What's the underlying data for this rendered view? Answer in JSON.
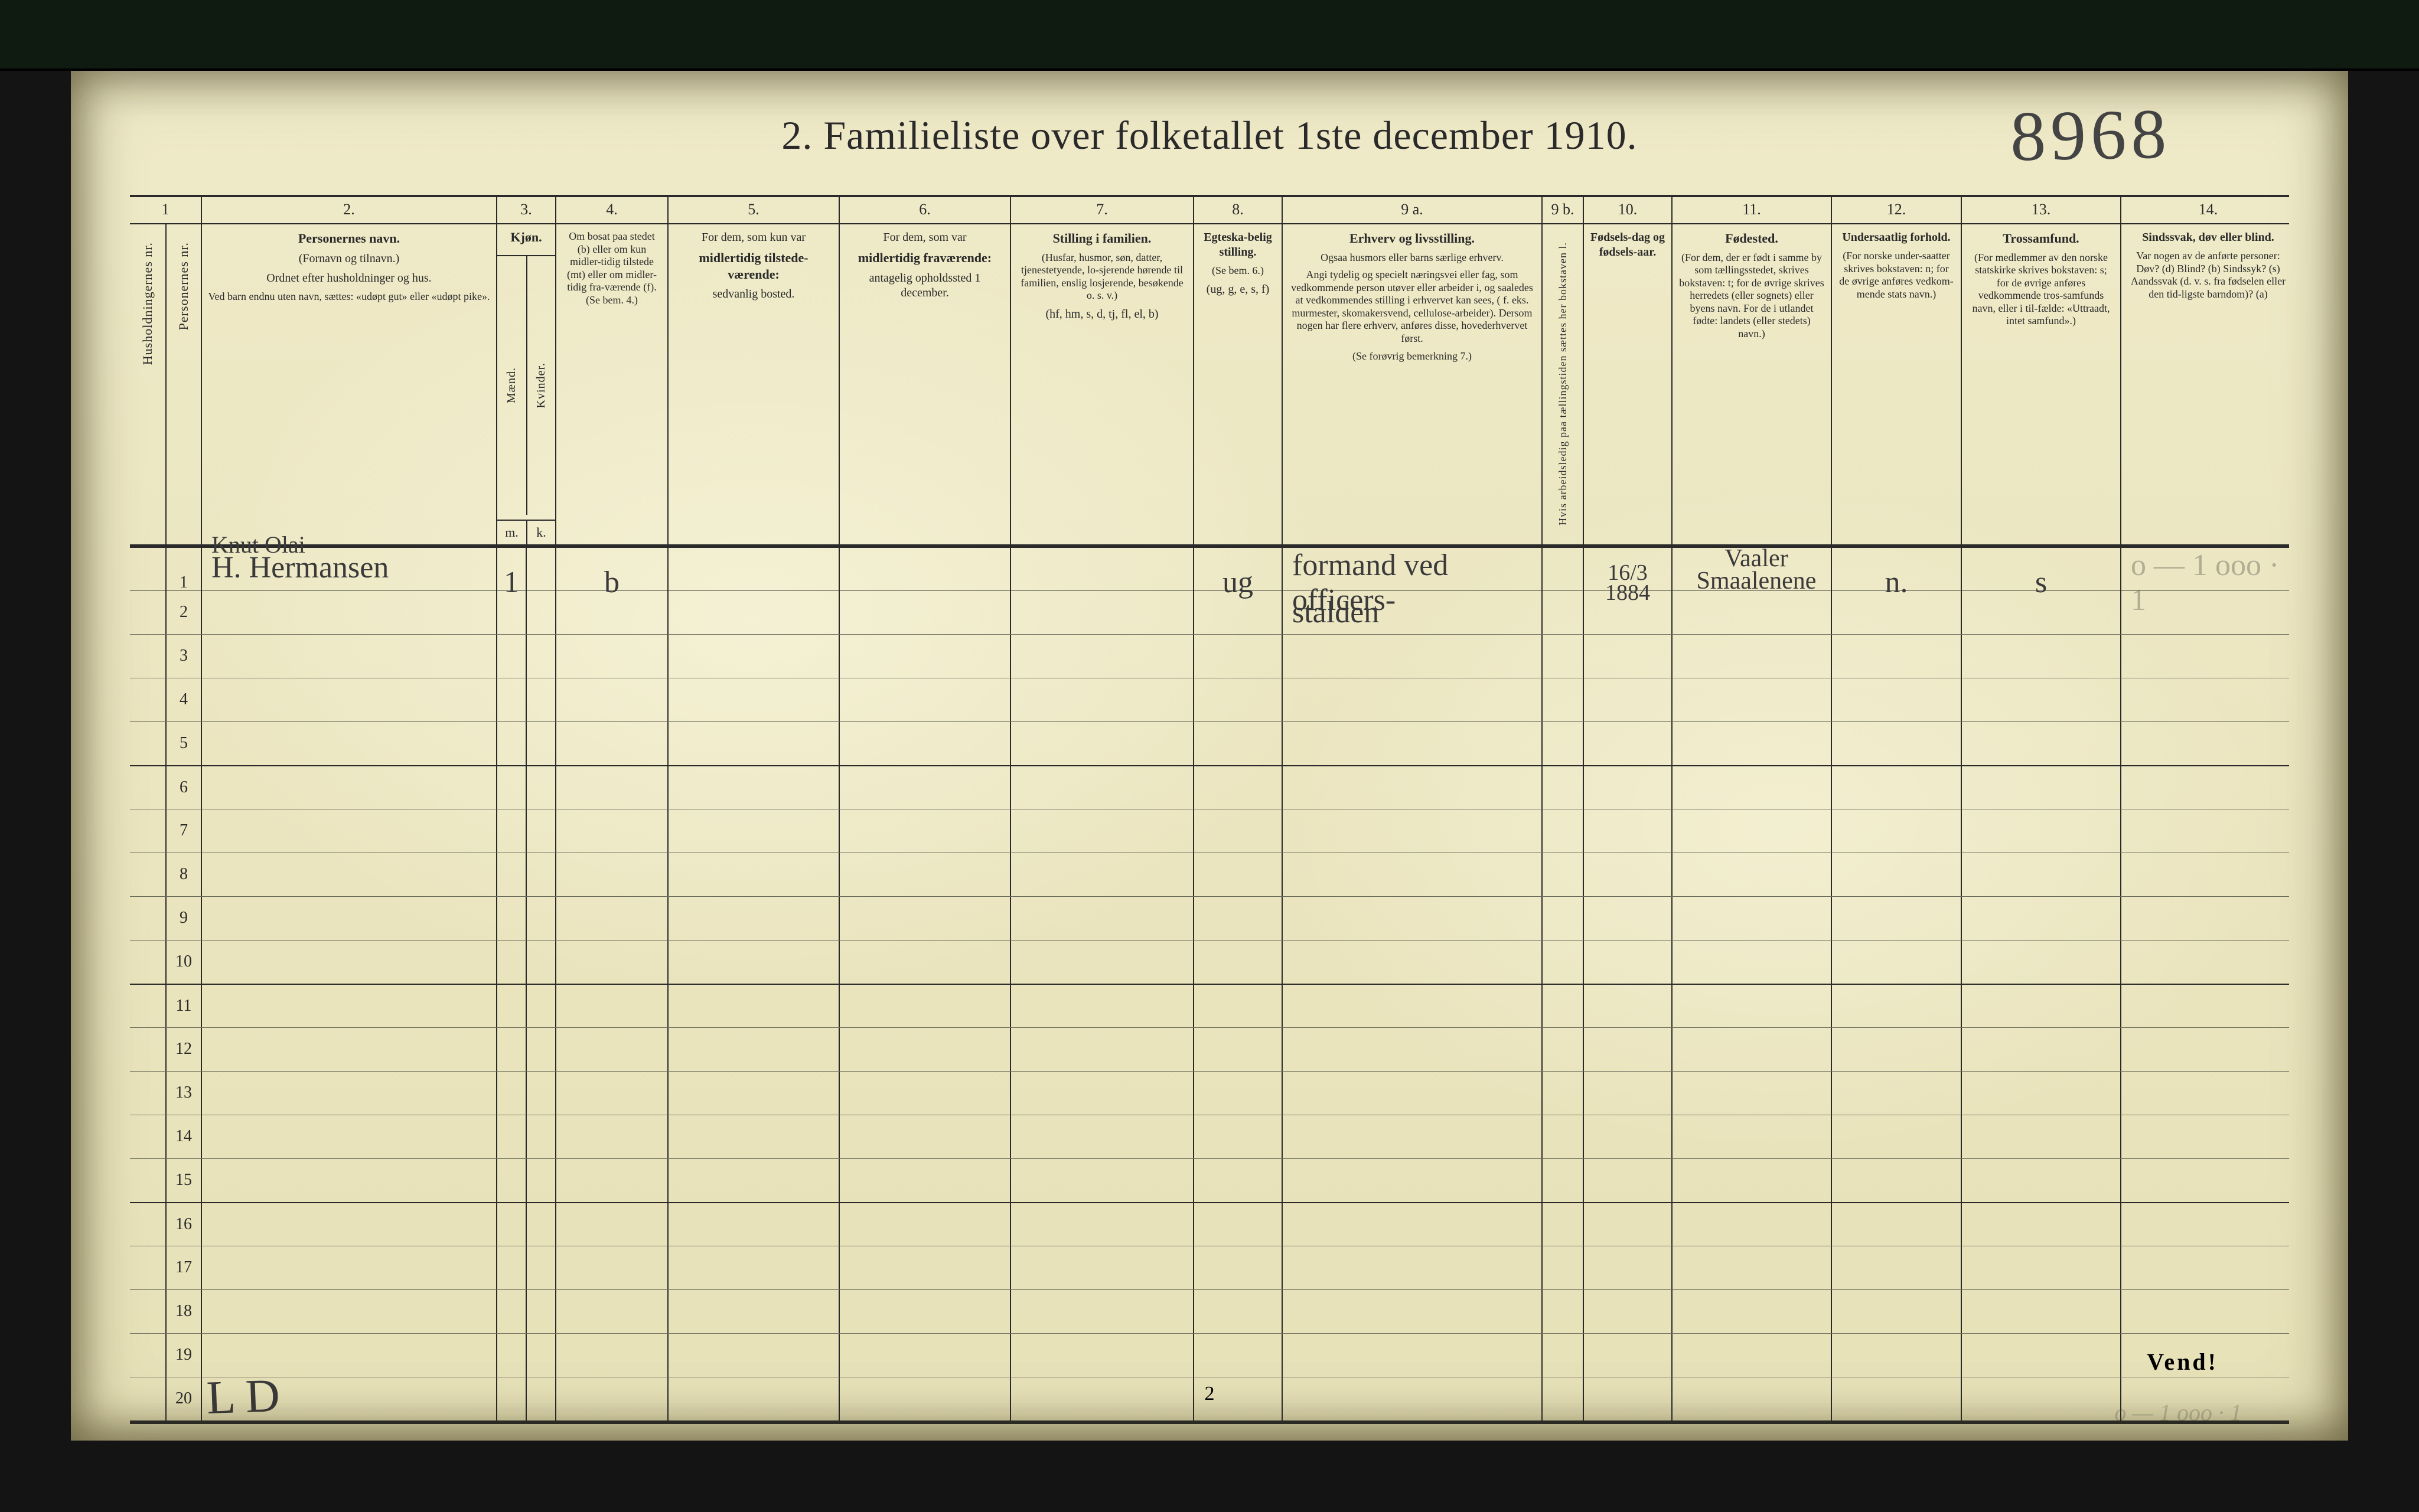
{
  "page": {
    "title": "2.  Familieliste over folketallet 1ste december 1910.",
    "handwritten_top_number": "8968",
    "footer_page_number": "2",
    "vend_label": "Vend!",
    "bottom_scrawl_left": "L D",
    "bottom_scrawl_right_faint": "o — 1  ooo · 1"
  },
  "colors": {
    "outer_background": "#141414",
    "topbar": "#0f1a10",
    "paper": "#efeac8",
    "ink": "#2a2a2a",
    "rule_light": "#6a6a5a",
    "handwriting": "#3a3a3a"
  },
  "column_numbers": [
    "1",
    "2.",
    "3.",
    "4.",
    "5.",
    "6.",
    "7.",
    "8.",
    "9 a.",
    "9 b.",
    "10.",
    "11.",
    "12.",
    "13.",
    "14."
  ],
  "headers": {
    "c1a": "Husholdningernes nr.",
    "c1b": "Personernes nr.",
    "c2_title": "Personernes navn.",
    "c2_sub1": "(Fornavn og tilnavn.)",
    "c2_sub2": "Ordnet efter husholdninger og hus.",
    "c2_sub3": "Ved barn endnu uten navn, sættes: «udøpt gut» eller «udøpt pike».",
    "c3_title": "Kjøn.",
    "c3_sub1": "Mænd.",
    "c3_sub2": "Kvinder.",
    "c3_mk_m": "m.",
    "c3_mk_k": "k.",
    "c4": "Om bosat paa stedet (b) eller om kun midler-tidig tilstede (mt) eller om midler-tidig fra-værende (f). (Se bem. 4.)",
    "c5_t": "For dem, som kun var",
    "c5_b": "midlertidig tilstede-værende:",
    "c5_s": "sedvanlig bosted.",
    "c6_t": "For dem, som var",
    "c6_b": "midlertidig fraværende:",
    "c6_s": "antagelig opholdssted 1 december.",
    "c7_t": "Stilling i familien.",
    "c7_s1": "(Husfar, husmor, søn, datter, tjenestetyende, lo-sjerende hørende til familien, enslig losjerende, besøkende o. s. v.)",
    "c7_s2": "(hf, hm, s, d, tj, fl, el, b)",
    "c8_t": "Egteska-belig stilling.",
    "c8_s1": "(Se bem. 6.)",
    "c8_s2": "(ug, g, e, s, f)",
    "c9a_t": "Erhverv og livsstilling.",
    "c9a_s1": "Ogsaa husmors eller barns særlige erhverv.",
    "c9a_s2": "Angi tydelig og specielt næringsvei eller fag, som vedkommende person utøver eller arbeider i, og saaledes at vedkommendes stilling i erhvervet kan sees, ( f. eks. murmester, skomakersvend, cellulose-arbeider).  Dersom nogen har flere erhverv, anføres disse, hovederhvervet først.",
    "c9a_s3": "(Se forøvrig bemerkning 7.)",
    "c9b": "Hvis arbeidsledig paa tællingstiden sættes her bokstaven l.",
    "c10_t": "Fødsels-dag og fødsels-aar.",
    "c11_t": "Fødested.",
    "c11_s": "(For dem, der er født i samme by som tællingsstedet, skrives bokstaven: t; for de øvrige skrives herredets (eller sognets) eller byens navn. For de i utlandet fødte: landets (eller stedets) navn.)",
    "c12_t": "Undersaatlig forhold.",
    "c12_s": "(For norske under-saatter skrives bokstaven: n; for de øvrige anføres vedkom-mende stats navn.)",
    "c13_t": "Trossamfund.",
    "c13_s": "(For medlemmer av den norske statskirke skrives bokstaven: s; for de øvrige anføres vedkommende tros-samfunds navn, eller i til-fælde: «Uttraadt, intet samfund».)",
    "c14_t": "Sindssvak, døv eller blind.",
    "c14_s": "Var nogen av de anførte personer: Døv? (d)  Blind? (b)  Sindssyk? (s)  Aandssvak (d. v. s. fra fødselen eller den tid-ligste barndom)? (a)"
  },
  "rows": [
    {
      "n": "1",
      "name_top": "Knut Olai",
      "name": "H. Hermansen",
      "m": "1",
      "k": "",
      "c4": "b",
      "c5": "",
      "c6": "",
      "c7": "",
      "c8": "ug",
      "c9a": "formand ved officers-",
      "c9b": "",
      "c10": "16/3 1884",
      "c11": "Vaaler Smaalenene",
      "c12": "n.",
      "c13": "s",
      "c14_faint": "o — 1 ooo · 1"
    },
    {
      "n": "2",
      "c9a": "stalden"
    },
    {
      "n": "3"
    },
    {
      "n": "4"
    },
    {
      "n": "5"
    },
    {
      "n": "6"
    },
    {
      "n": "7"
    },
    {
      "n": "8"
    },
    {
      "n": "9"
    },
    {
      "n": "10"
    },
    {
      "n": "11"
    },
    {
      "n": "12"
    },
    {
      "n": "13"
    },
    {
      "n": "14"
    },
    {
      "n": "15"
    },
    {
      "n": "16"
    },
    {
      "n": "17"
    },
    {
      "n": "18"
    },
    {
      "n": "19"
    },
    {
      "n": "20"
    }
  ]
}
